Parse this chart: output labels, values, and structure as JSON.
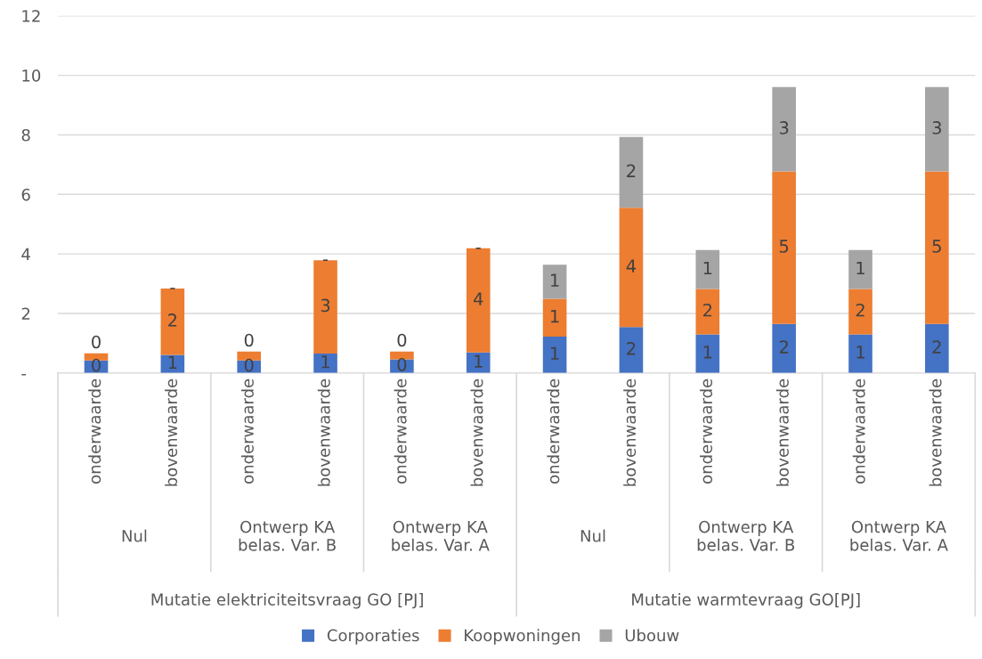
{
  "chart_data": {
    "type": "bar",
    "stacked": true,
    "categories": [
      "onderwaarde",
      "bovenwaarde",
      "onderwaarde",
      "bovenwaarde",
      "onderwaarde",
      "bovenwaarde",
      "onderwaarde",
      "bovenwaarde",
      "onderwaarde",
      "bovenwaarde",
      "onderwaarde",
      "bovenwaarde"
    ],
    "series": [
      {
        "name": "Corporaties",
        "color": "#4472c4",
        "values": [
          0.42,
          0.61,
          0.42,
          0.65,
          0.46,
          0.69,
          1.22,
          1.54,
          1.3,
          1.65,
          1.3,
          1.65
        ],
        "value_labels": [
          "0",
          "1",
          "0",
          "1",
          "0",
          "1",
          "1",
          "2",
          "1",
          "2",
          "1",
          "2"
        ]
      },
      {
        "name": "Koopwoningen",
        "color": "#ed7d31",
        "values": [
          0.24,
          2.23,
          0.3,
          3.14,
          0.26,
          3.5,
          1.27,
          4.01,
          1.52,
          5.12,
          1.52,
          5.12
        ],
        "value_labels": [
          "0",
          "2",
          "0",
          "3",
          "0",
          "4",
          "1",
          "4",
          "2",
          "5",
          "2",
          "5"
        ]
      },
      {
        "name": "Ubouw",
        "color": "#a5a5a5",
        "values": [
          0,
          0,
          0,
          0,
          0,
          0,
          1.15,
          2.38,
          1.31,
          2.84,
          1.31,
          2.84
        ],
        "value_labels": [
          null,
          "-",
          null,
          "-",
          null,
          "-",
          "1",
          "2",
          "1",
          "3",
          "1",
          "3"
        ]
      }
    ],
    "ylim": [
      0,
      12
    ],
    "yticks": [
      {
        "value": 0,
        "label": "-"
      },
      2,
      4,
      6,
      8,
      10,
      12
    ],
    "grid": "y",
    "legend": "bottom",
    "annotations": [
      "Nul",
      "Ontwerp KA\nbelas. Var. B",
      "Ontwerp KA\nbelas. Var. A",
      "Nul",
      "Ontwerp KA\nbelas. Var. B",
      "Ontwerp KA\nbelas. Var. A",
      "Mutatie elektriciteitsvraag GO [PJ]",
      "Mutatie warmtevraag GO[PJ]"
    ]
  }
}
